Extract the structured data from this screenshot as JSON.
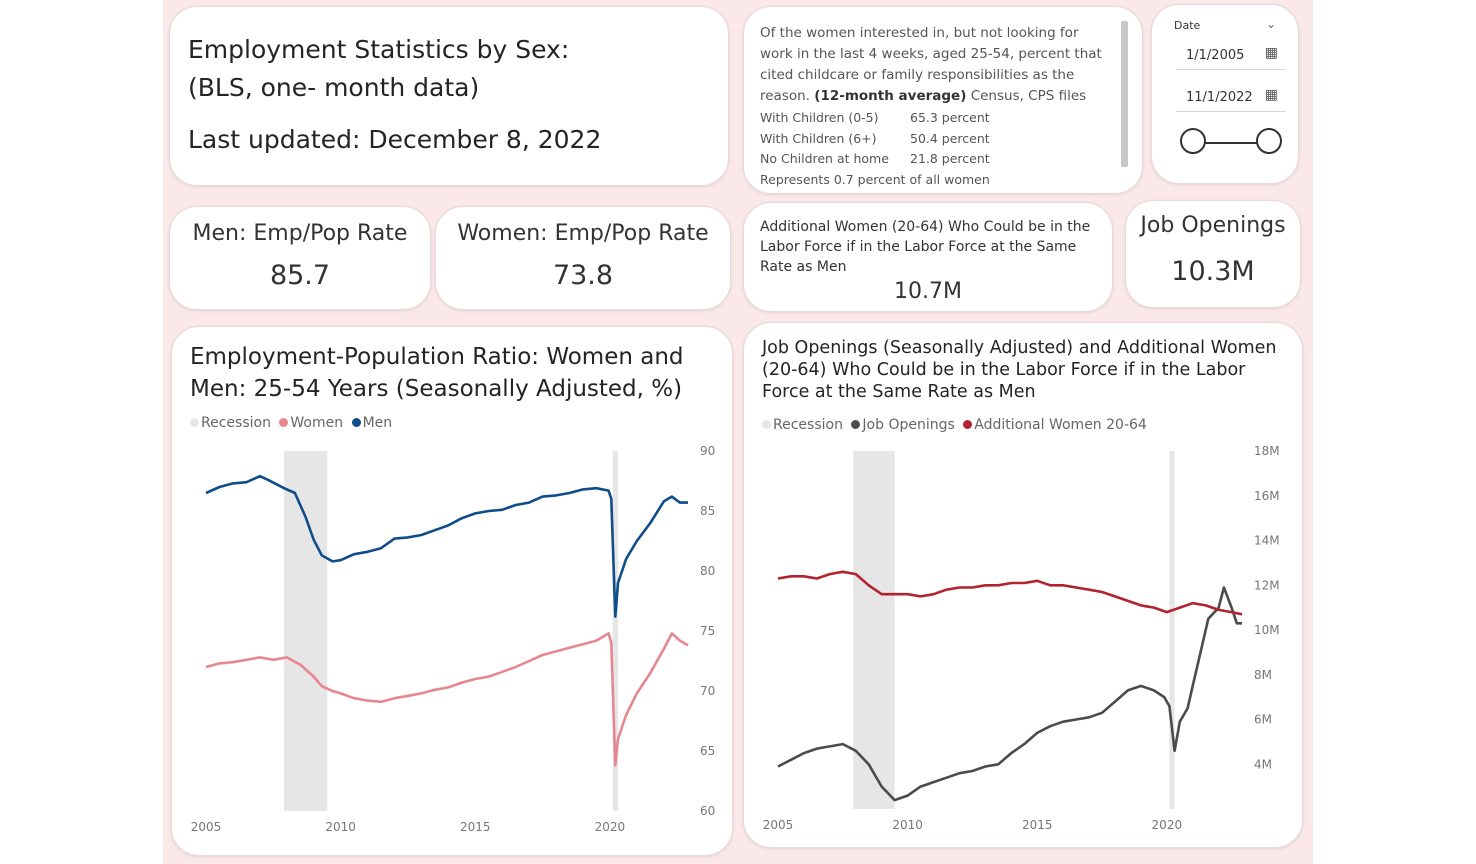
{
  "header": {
    "title_line1": "Employment Statistics by Sex:",
    "title_line2": "(BLS, one- month data)",
    "last_updated": "Last updated: December 8, 2022"
  },
  "note": {
    "intro": "Of the women interested in, but not looking for work in the last 4 weeks, aged 25-54, percent that cited childcare or family responsibilities as the reason.",
    "intro_bold": "(12-month average)",
    "intro_source": "Census, CPS files",
    "rows": [
      {
        "label": "With Children (0-5)",
        "value": "65.3 percent"
      },
      {
        "label": "With Children (6+)",
        "value": "50.4 percent"
      },
      {
        "label": "No Children at home",
        "value": "21.8 percent"
      }
    ],
    "footer": "Represents 0.7 percent of all women"
  },
  "date_filter": {
    "label": "Date",
    "start": "1/1/2005",
    "end": "11/1/2022",
    "icon": "calendar-icon"
  },
  "kpis": {
    "men_label": "Men: Emp/Pop Rate",
    "men_value": "85.7",
    "women_label": "Women: Emp/Pop Rate",
    "women_value": "73.8",
    "additional_label": "Additional Women (20-64) Who Could be in the Labor Force if in the Labor Force at the Same Rate as Men",
    "additional_value": "10.7M",
    "jobs_label": "Job Openings",
    "jobs_value": "10.3M"
  },
  "colors": {
    "recession": "#e6e6e6",
    "women": "#e8868f",
    "men": "#0f4c8a",
    "job_openings": "#4b4b4b",
    "additional_women": "#b0232f",
    "background": "#fbe9ea"
  },
  "chart_data": [
    {
      "type": "line",
      "title": "Employment-Population Ratio: Women and Men: 25-54 Years (Seasonally Adjusted, %)",
      "legend": [
        "Recession",
        "Women",
        "Men"
      ],
      "legend_position": "top-left",
      "y_axis_position": "right",
      "xlim": [
        2005,
        2022.9
      ],
      "ylim": [
        60,
        90
      ],
      "x_ticks": [
        "2005",
        "2010",
        "2015",
        "2020"
      ],
      "y_ticks": [
        "90",
        "85",
        "80",
        "75",
        "70",
        "65",
        "60"
      ],
      "recession_bands": [
        [
          2007.9,
          2009.5
        ],
        [
          2020.1,
          2020.3
        ]
      ],
      "series": [
        {
          "name": "Men",
          "points": [
            [
              2005,
              86.5
            ],
            [
              2005.5,
              87.0
            ],
            [
              2006,
              87.3
            ],
            [
              2006.5,
              87.4
            ],
            [
              2007,
              87.9
            ],
            [
              2007.3,
              87.6
            ],
            [
              2007.9,
              86.9
            ],
            [
              2008.3,
              86.5
            ],
            [
              2008.7,
              84.5
            ],
            [
              2009.0,
              82.6
            ],
            [
              2009.3,
              81.3
            ],
            [
              2009.7,
              80.8
            ],
            [
              2010,
              80.9
            ],
            [
              2010.5,
              81.4
            ],
            [
              2011,
              81.6
            ],
            [
              2011.5,
              81.9
            ],
            [
              2012,
              82.7
            ],
            [
              2012.5,
              82.8
            ],
            [
              2013,
              83.0
            ],
            [
              2013.5,
              83.4
            ],
            [
              2014,
              83.8
            ],
            [
              2014.5,
              84.4
            ],
            [
              2015,
              84.8
            ],
            [
              2015.5,
              85.0
            ],
            [
              2016,
              85.1
            ],
            [
              2016.5,
              85.5
            ],
            [
              2017,
              85.7
            ],
            [
              2017.5,
              86.2
            ],
            [
              2018,
              86.3
            ],
            [
              2018.5,
              86.5
            ],
            [
              2019,
              86.8
            ],
            [
              2019.5,
              86.9
            ],
            [
              2019.95,
              86.7
            ],
            [
              2020.05,
              86.0
            ],
            [
              2020.2,
              76.2
            ],
            [
              2020.3,
              79.0
            ],
            [
              2020.6,
              81.0
            ],
            [
              2021,
              82.5
            ],
            [
              2021.5,
              84.0
            ],
            [
              2022,
              85.8
            ],
            [
              2022.3,
              86.2
            ],
            [
              2022.6,
              85.7
            ],
            [
              2022.9,
              85.7
            ]
          ]
        },
        {
          "name": "Women",
          "points": [
            [
              2005,
              72.0
            ],
            [
              2005.5,
              72.3
            ],
            [
              2006,
              72.4
            ],
            [
              2006.5,
              72.6
            ],
            [
              2007,
              72.8
            ],
            [
              2007.5,
              72.6
            ],
            [
              2008,
              72.8
            ],
            [
              2008.5,
              72.2
            ],
            [
              2009,
              71.2
            ],
            [
              2009.3,
              70.4
            ],
            [
              2009.7,
              70.0
            ],
            [
              2010,
              69.8
            ],
            [
              2010.5,
              69.4
            ],
            [
              2011,
              69.2
            ],
            [
              2011.5,
              69.1
            ],
            [
              2012,
              69.4
            ],
            [
              2012.5,
              69.6
            ],
            [
              2013,
              69.8
            ],
            [
              2013.5,
              70.1
            ],
            [
              2014,
              70.3
            ],
            [
              2014.5,
              70.7
            ],
            [
              2015,
              71.0
            ],
            [
              2015.5,
              71.2
            ],
            [
              2016,
              71.6
            ],
            [
              2016.5,
              72.0
            ],
            [
              2017,
              72.5
            ],
            [
              2017.5,
              73.0
            ],
            [
              2018,
              73.3
            ],
            [
              2018.5,
              73.6
            ],
            [
              2019,
              73.9
            ],
            [
              2019.5,
              74.2
            ],
            [
              2019.95,
              74.8
            ],
            [
              2020.05,
              74.0
            ],
            [
              2020.2,
              63.8
            ],
            [
              2020.3,
              66.0
            ],
            [
              2020.6,
              68.0
            ],
            [
              2021,
              69.8
            ],
            [
              2021.5,
              71.5
            ],
            [
              2022,
              73.5
            ],
            [
              2022.3,
              74.8
            ],
            [
              2022.6,
              74.2
            ],
            [
              2022.9,
              73.8
            ]
          ]
        }
      ]
    },
    {
      "type": "line",
      "title": "Job Openings (Seasonally Adjusted) and Additional Women (20-64) Who Could be in the Labor Force if in the Labor Force at the Same Rate as Men",
      "legend": [
        "Recession",
        "Job Openings",
        "Additional Women 20-64"
      ],
      "legend_position": "top-left",
      "y_axis_position": "right",
      "xlim": [
        2005,
        2022.9
      ],
      "ylim": [
        2000000,
        18000000
      ],
      "x_ticks": [
        "2005",
        "2010",
        "2015",
        "2020"
      ],
      "y_ticks": [
        "18M",
        "16M",
        "14M",
        "12M",
        "10M",
        "8M",
        "6M",
        "4M"
      ],
      "recession_bands": [
        [
          2007.9,
          2009.5
        ],
        [
          2020.1,
          2020.3
        ]
      ],
      "series": [
        {
          "name": "Job Openings",
          "points": [
            [
              2005,
              3.9
            ],
            [
              2005.5,
              4.2
            ],
            [
              2006,
              4.5
            ],
            [
              2006.5,
              4.7
            ],
            [
              2007,
              4.8
            ],
            [
              2007.5,
              4.9
            ],
            [
              2008,
              4.6
            ],
            [
              2008.5,
              4.0
            ],
            [
              2009,
              3.0
            ],
            [
              2009.5,
              2.4
            ],
            [
              2010,
              2.6
            ],
            [
              2010.5,
              3.0
            ],
            [
              2011,
              3.2
            ],
            [
              2011.5,
              3.4
            ],
            [
              2012,
              3.6
            ],
            [
              2012.5,
              3.7
            ],
            [
              2013,
              3.9
            ],
            [
              2013.5,
              4.0
            ],
            [
              2014,
              4.5
            ],
            [
              2014.5,
              4.9
            ],
            [
              2015,
              5.4
            ],
            [
              2015.5,
              5.7
            ],
            [
              2016,
              5.9
            ],
            [
              2016.5,
              6.0
            ],
            [
              2017,
              6.1
            ],
            [
              2017.5,
              6.3
            ],
            [
              2018,
              6.8
            ],
            [
              2018.5,
              7.3
            ],
            [
              2019,
              7.5
            ],
            [
              2019.5,
              7.3
            ],
            [
              2019.9,
              7.0
            ],
            [
              2020.1,
              6.6
            ],
            [
              2020.3,
              4.6
            ],
            [
              2020.5,
              5.9
            ],
            [
              2020.8,
              6.5
            ],
            [
              2021,
              7.5
            ],
            [
              2021.3,
              9.0
            ],
            [
              2021.6,
              10.5
            ],
            [
              2022,
              11.0
            ],
            [
              2022.2,
              11.9
            ],
            [
              2022.5,
              11.0
            ],
            [
              2022.7,
              10.3
            ],
            [
              2022.9,
              10.3
            ]
          ]
        },
        {
          "name": "Additional Women 20-64",
          "points": [
            [
              2005,
              12.3
            ],
            [
              2005.5,
              12.4
            ],
            [
              2006,
              12.4
            ],
            [
              2006.5,
              12.3
            ],
            [
              2007,
              12.5
            ],
            [
              2007.5,
              12.6
            ],
            [
              2008,
              12.5
            ],
            [
              2008.5,
              12.0
            ],
            [
              2009,
              11.6
            ],
            [
              2009.5,
              11.6
            ],
            [
              2010,
              11.6
            ],
            [
              2010.5,
              11.5
            ],
            [
              2011,
              11.6
            ],
            [
              2011.5,
              11.8
            ],
            [
              2012,
              11.9
            ],
            [
              2012.5,
              11.9
            ],
            [
              2013,
              12.0
            ],
            [
              2013.5,
              12.0
            ],
            [
              2014,
              12.1
            ],
            [
              2014.5,
              12.1
            ],
            [
              2015,
              12.2
            ],
            [
              2015.5,
              12.0
            ],
            [
              2016,
              12.0
            ],
            [
              2016.5,
              11.9
            ],
            [
              2017,
              11.8
            ],
            [
              2017.5,
              11.7
            ],
            [
              2018,
              11.5
            ],
            [
              2018.5,
              11.3
            ],
            [
              2019,
              11.1
            ],
            [
              2019.5,
              11.0
            ],
            [
              2020,
              10.8
            ],
            [
              2020.5,
              11.0
            ],
            [
              2021,
              11.2
            ],
            [
              2021.5,
              11.1
            ],
            [
              2022,
              10.9
            ],
            [
              2022.5,
              10.8
            ],
            [
              2022.9,
              10.7
            ]
          ]
        }
      ]
    }
  ]
}
